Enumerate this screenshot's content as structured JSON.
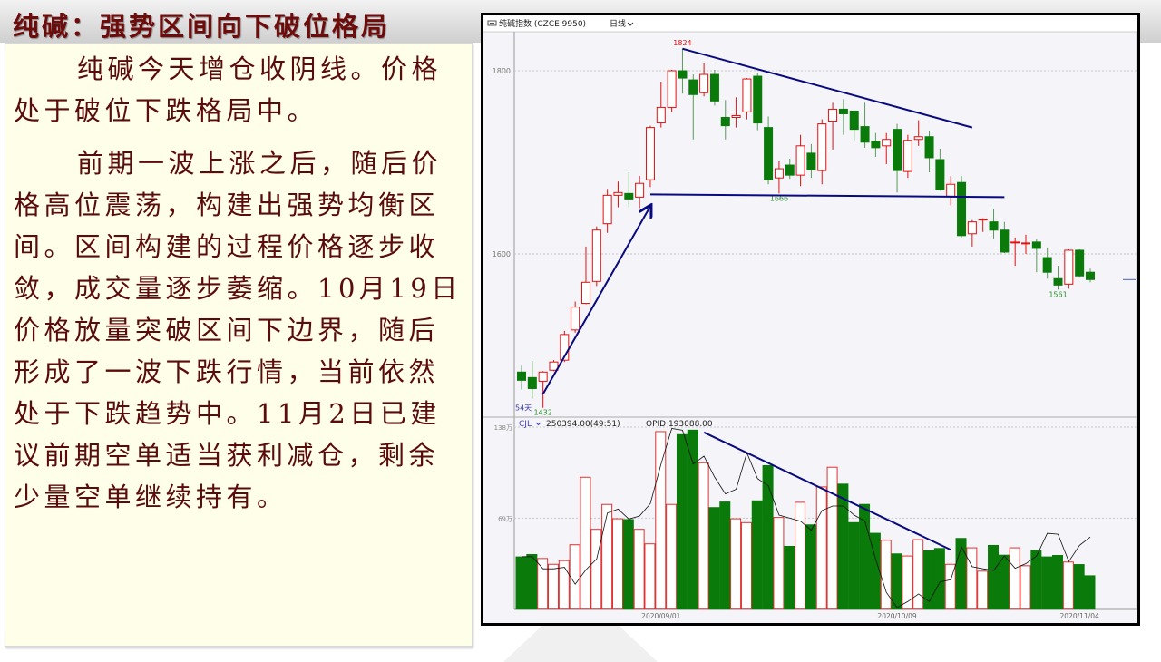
{
  "slide": {
    "title": "纯碱：强势区间向下破位格局",
    "paragraphs": [
      {
        "lines": [
          "纯碱今天增仓收阴线。价格",
          "处于破位下跌格局中。"
        ]
      },
      {
        "lines": [
          "前期一波上涨之后，随后价",
          "格高位震荡，构建出强势均衡区",
          "间。区间构建的过程价格逐步收",
          "敛，成交量逐步萎缩。10月19日",
          "价格放量突破区间下边界，随后",
          "形成了一波下跌行情，当前依然",
          "处于下跌趋势中。11月2日已建",
          "议前期空单适当获利减仓，剩余",
          "少量空单继续持有。"
        ]
      }
    ]
  },
  "chart_header": {
    "icon": "chart-toggle-icon",
    "instrument": "纯碱指数 (CZCE 9950)",
    "period": "日线",
    "period_icon": "chevron-down-icon"
  },
  "volume_header": {
    "indicator": "CJL",
    "values": "250394.00(49:51)",
    "opid": "OPID 193088.00"
  },
  "chart_data": [
    {
      "type": "candlestick",
      "y_ticks": [
        {
          "value": 1800,
          "label": "1800"
        },
        {
          "value": 1600,
          "label": "1600"
        }
      ],
      "grid": "horizontal dashed",
      "up_color": "#e01010",
      "down_color": "#0a7a0a",
      "candles": [
        [
          1471,
          1478,
          1452,
          1462
        ],
        [
          1465,
          1483,
          1442,
          1453
        ],
        [
          1461,
          1472,
          1432,
          1471
        ],
        [
          1473,
          1484,
          1472,
          1482
        ],
        [
          1484,
          1516,
          1482,
          1512
        ],
        [
          1517,
          1548,
          1514,
          1542
        ],
        [
          1546,
          1608,
          1545,
          1569
        ],
        [
          1570,
          1630,
          1565,
          1626
        ],
        [
          1633,
          1671,
          1623,
          1664
        ],
        [
          1664,
          1679,
          1651,
          1667
        ],
        [
          1666,
          1689,
          1651,
          1660
        ],
        [
          1662,
          1685,
          1650,
          1677
        ],
        [
          1681,
          1740,
          1673,
          1738
        ],
        [
          1743,
          1788,
          1738,
          1760
        ],
        [
          1760,
          1801,
          1755,
          1800
        ],
        [
          1800,
          1824,
          1775,
          1792
        ],
        [
          1790,
          1796,
          1725,
          1774
        ],
        [
          1776,
          1808,
          1772,
          1796
        ],
        [
          1796,
          1801,
          1762,
          1767
        ],
        [
          1749,
          1768,
          1725,
          1740
        ],
        [
          1749,
          1771,
          1738,
          1751
        ],
        [
          1755,
          1792,
          1747,
          1791
        ],
        [
          1794,
          1798,
          1735,
          1743
        ],
        [
          1738,
          1750,
          1676,
          1681
        ],
        [
          1683,
          1701,
          1666,
          1693
        ],
        [
          1697,
          1704,
          1682,
          1686
        ],
        [
          1686,
          1730,
          1674,
          1718
        ],
        [
          1710,
          1720,
          1683,
          1692
        ],
        [
          1691,
          1747,
          1676,
          1742
        ],
        [
          1745,
          1765,
          1714,
          1758
        ],
        [
          1758,
          1769,
          1730,
          1753
        ],
        [
          1756,
          1757,
          1724,
          1736
        ],
        [
          1739,
          1765,
          1716,
          1722
        ],
        [
          1723,
          1732,
          1706,
          1716
        ],
        [
          1718,
          1732,
          1698,
          1725
        ],
        [
          1736,
          1742,
          1667,
          1691
        ],
        [
          1690,
          1730,
          1683,
          1724
        ],
        [
          1725,
          1746,
          1718,
          1728
        ],
        [
          1728,
          1734,
          1689,
          1705
        ],
        [
          1703,
          1715,
          1669,
          1670
        ],
        [
          1663,
          1685,
          1653,
          1676
        ],
        [
          1678,
          1685,
          1618,
          1620
        ],
        [
          1622,
          1637,
          1608,
          1635
        ],
        [
          1637,
          1639,
          1624,
          1638
        ],
        [
          1635,
          1649,
          1617,
          1626
        ],
        [
          1626,
          1635,
          1601,
          1602
        ],
        [
          1612,
          1618,
          1587,
          1613
        ],
        [
          1612,
          1621,
          1600,
          1612
        ],
        [
          1613,
          1616,
          1580,
          1606
        ],
        [
          1596,
          1606,
          1573,
          1580
        ],
        [
          1573,
          1587,
          1561,
          1566
        ],
        [
          1567,
          1605,
          1562,
          1604
        ],
        [
          1604,
          1605,
          1574,
          1576
        ],
        [
          1580,
          1584,
          1569,
          1572
        ]
      ],
      "candle_fields": [
        "open",
        "high",
        "low",
        "close"
      ],
      "annotations": [
        {
          "text": "1824",
          "index": 15,
          "price": 1824,
          "color": "#e01010",
          "place": "above"
        },
        {
          "text": "1666",
          "index": 24,
          "price": 1666,
          "color": "#2a8a2a",
          "place": "below"
        },
        {
          "text": "1561",
          "index": 50,
          "price": 1561,
          "color": "#2a8a2a",
          "place": "below"
        },
        {
          "text": "1432",
          "index": 2,
          "price": 1432,
          "color": "#2a8a2a",
          "place": "below"
        },
        {
          "text": "54天",
          "index": 0,
          "price": 1432,
          "color": "#3a3ab0",
          "place": "below-left"
        }
      ],
      "trendlines": [
        {
          "name": "upper-resistance",
          "from": [
            15,
            1824
          ],
          "to": [
            42,
            1738
          ],
          "color": "#0a0a80"
        },
        {
          "name": "range-bottom",
          "from": [
            12,
            1665
          ],
          "to": [
            45,
            1662
          ],
          "color": "#0a0a80"
        },
        {
          "name": "uptrend-arrow",
          "from": [
            2,
            1447
          ],
          "to": [
            12,
            1652
          ],
          "color": "#0a0a80",
          "arrow": true
        }
      ],
      "last_price_marker": 1572
    },
    {
      "type": "bar",
      "y_ticks": [
        {
          "value": 138,
          "label": "138万"
        },
        {
          "value": 69,
          "label": "69万"
        }
      ],
      "unit": "万",
      "volume": [
        39.6,
        41.4,
        38.4,
        34.0,
        36.8,
        48.8,
        100,
        60.5,
        79.4,
        68.5,
        67.9,
        60.5,
        49.5,
        134.6,
        79.4,
        132.3,
        135.7,
        111,
        77,
        81.2,
        68.5,
        65.6,
        82.1,
        108.8,
        69.5,
        47.6,
        81,
        63.9,
        92.7,
        107.6,
        94.8,
        65.6,
        79.4,
        57.5,
        52.2,
        41.9,
        40.3,
        52.7,
        44.2,
        46,
        34,
        53.6,
        46.5,
        28.8,
        48.3,
        40.9,
        46.5,
        32.9,
        44.4,
        39.6,
        40.7,
        35.7,
        33.8,
        25.3
      ],
      "series": [
        {
          "name": "OPID",
          "type": "line",
          "values": [
            39.8,
            39.8,
            30.6,
            30.6,
            31.7,
            18.9,
            29.9,
            38,
            72.9,
            75.9,
            68.3,
            70.6,
            80,
            110,
            137,
            135.7,
            110,
            116,
            100,
            87.4,
            90.9,
            118.5,
            98.9,
            93.6,
            71.3,
            69,
            66.7,
            59.8,
            74.8,
            78.2,
            78.2,
            71.3,
            66.7,
            37.9,
            12.7,
            1.2,
            5.8,
            11.5,
            5.8,
            20.7,
            22.3,
            47.2,
            32.2,
            30.6,
            29.4,
            40.3,
            31,
            34.5,
            40.3,
            57.5,
            56.8,
            36.1,
            48.3,
            54.7
          ]
        }
      ],
      "trendlines": [
        {
          "name": "volume-decline",
          "from": [
            17,
            134
          ],
          "to": [
            40,
            45
          ],
          "color": "#0a0a80"
        }
      ],
      "x_ticks": [
        {
          "label": "2020/09/01",
          "index": 13
        },
        {
          "label": "2020/10/09",
          "index": 35
        },
        {
          "label": "2020/11/04",
          "index": 52
        }
      ]
    }
  ]
}
